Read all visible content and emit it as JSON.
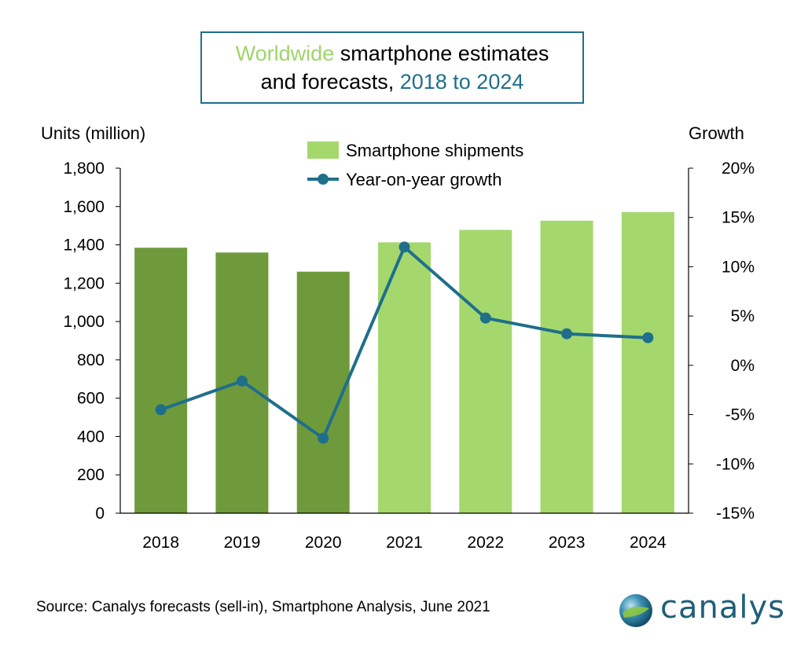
{
  "title": {
    "part1": "Worldwide",
    "part2": " smartphone estimates",
    "part3": "and forecasts, ",
    "part4": "2018 to 2024"
  },
  "source": "Source: Canalys forecasts (sell-in), Smartphone Analysis, June 2021",
  "logo": {
    "text": "canalys",
    "icon": "globe-icon"
  },
  "colors": {
    "actual_bar": "#6f9a3c",
    "forecast_bar": "#a4d86d",
    "line": "#1f6f8b",
    "title_green": "#9fd46a",
    "title_blue": "#1f6f8b",
    "logo": "#1f5f7a"
  },
  "chart_data": {
    "type": "bar",
    "categories": [
      "2018",
      "2019",
      "2020",
      "2021",
      "2022",
      "2023",
      "2024"
    ],
    "ylabel": "Units (million)",
    "y2label": "Growth",
    "ylim": [
      0,
      1800
    ],
    "yticks": [
      "0",
      "200",
      "400",
      "600",
      "800",
      "1,000",
      "1,200",
      "1,400",
      "1,600",
      "1,800"
    ],
    "y2lim": [
      -15,
      20
    ],
    "y2ticks": [
      "-15%",
      "-10%",
      "-5%",
      "0%",
      "5%",
      "10%",
      "15%",
      "20%"
    ],
    "legend_position": "top-center",
    "grid": false,
    "forecast_from_index": 3,
    "series": [
      {
        "name": "Smartphone shipments",
        "type": "bar",
        "axis": "left",
        "values": [
          1385,
          1360,
          1260,
          1413,
          1478,
          1526,
          1571
        ]
      },
      {
        "name": "Year-on-year growth",
        "type": "line",
        "axis": "right",
        "values": [
          -4.5,
          -1.6,
          -7.4,
          12.0,
          4.8,
          3.2,
          2.8
        ]
      }
    ]
  }
}
